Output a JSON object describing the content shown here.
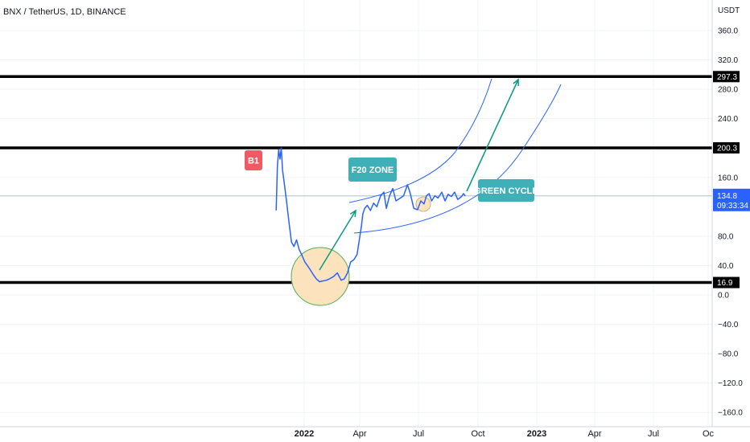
{
  "header": {
    "title": "BNX / TetherUS, 1D, BINANCE",
    "currency": "USDT"
  },
  "colors": {
    "price_line": "#2962ff",
    "channel": "#2962ff",
    "arrow": "#089981",
    "level": "#000000",
    "note_teal": "#40b0b8",
    "note_red": "#f05a64",
    "circle_fill": "#fde3bd",
    "circle_stroke": "#4caf50",
    "last_price_bg": "#2962ff"
  },
  "chart_data": {
    "type": "line",
    "series": [
      {
        "x": [
          "2021-11-18",
          "2021-11-20",
          "2021-11-22",
          "2021-11-24",
          "2021-11-26",
          "2021-11-28",
          "2021-12-01",
          "2021-12-04",
          "2021-12-08",
          "2021-12-12",
          "2021-12-16",
          "2021-12-20",
          "2021-12-24",
          "2021-12-28",
          "2022-01-02",
          "2022-01-06",
          "2022-01-10",
          "2022-01-15",
          "2022-01-20",
          "2022-01-25",
          "2022-01-30",
          "2022-02-05",
          "2022-02-10",
          "2022-02-16",
          "2022-02-22",
          "2022-02-28",
          "2022-03-05",
          "2022-03-10",
          "2022-03-15",
          "2022-03-20",
          "2022-03-25",
          "2022-04-01",
          "2022-04-03",
          "2022-04-06",
          "2022-04-10",
          "2022-04-15",
          "2022-04-20",
          "2022-04-25",
          "2022-05-01",
          "2022-05-06",
          "2022-05-10",
          "2022-05-15",
          "2022-05-20",
          "2022-05-25",
          "2022-06-01",
          "2022-06-06",
          "2022-06-12",
          "2022-06-16",
          "2022-06-22",
          "2022-06-28",
          "2022-07-03",
          "2022-07-08",
          "2022-07-12",
          "2022-07-16",
          "2022-07-20",
          "2022-07-25",
          "2022-07-30",
          "2022-08-05",
          "2022-08-10",
          "2022-08-15",
          "2022-08-20",
          "2022-08-25",
          "2022-08-30",
          "2022-09-05",
          "2022-09-08",
          "2022-09-11"
        ],
        "y": [
          115,
          175,
          198,
          185,
          200,
          170,
          150,
          130,
          100,
          72,
          66,
          75,
          62,
          55,
          45,
          40,
          35,
          28,
          22,
          18,
          19,
          20,
          22,
          25,
          30,
          20,
          22,
          30,
          45,
          48,
          55,
          95,
          110,
          118,
          122,
          115,
          125,
          120,
          135,
          140,
          118,
          135,
          145,
          128,
          132,
          135,
          150,
          140,
          118,
          116,
          128,
          124,
          135,
          138,
          128,
          135,
          132,
          140,
          128,
          137,
          134,
          140,
          130,
          134,
          138,
          134.8
        ]
      }
    ],
    "ylim": [
      -170,
      375
    ],
    "y_ticks": [
      "360.0",
      "320.0",
      "280.0",
      "240.0",
      "160.0",
      "80.0",
      "40.0",
      "0.0",
      "−40.0",
      "−80.0",
      "−120.0",
      "−160.0"
    ],
    "x_ticks": [
      {
        "label": "2022",
        "bold": true
      },
      {
        "label": "Apr",
        "bold": false
      },
      {
        "label": "Jul",
        "bold": false
      },
      {
        "label": "Oct",
        "bold": false
      },
      {
        "label": "2023",
        "bold": true
      },
      {
        "label": "Apr",
        "bold": false
      },
      {
        "label": "Jul",
        "bold": false
      },
      {
        "label": "Oc",
        "bold": false
      }
    ],
    "horizontal_levels": [
      {
        "value": 297.3,
        "label": "297.3"
      },
      {
        "value": 200.3,
        "label": "200.3"
      },
      {
        "value": 16.9,
        "label": "16.9"
      }
    ],
    "last_price": {
      "value": 134.8,
      "label": "134.8",
      "countdown": "09:33:34"
    },
    "annotations": [
      {
        "text": "B1",
        "color": "#f05a64"
      },
      {
        "text": "F20 ZONE",
        "color": "#40b0b8"
      },
      {
        "text": "GREEN CYCLE",
        "color": "#40b0b8"
      }
    ]
  }
}
